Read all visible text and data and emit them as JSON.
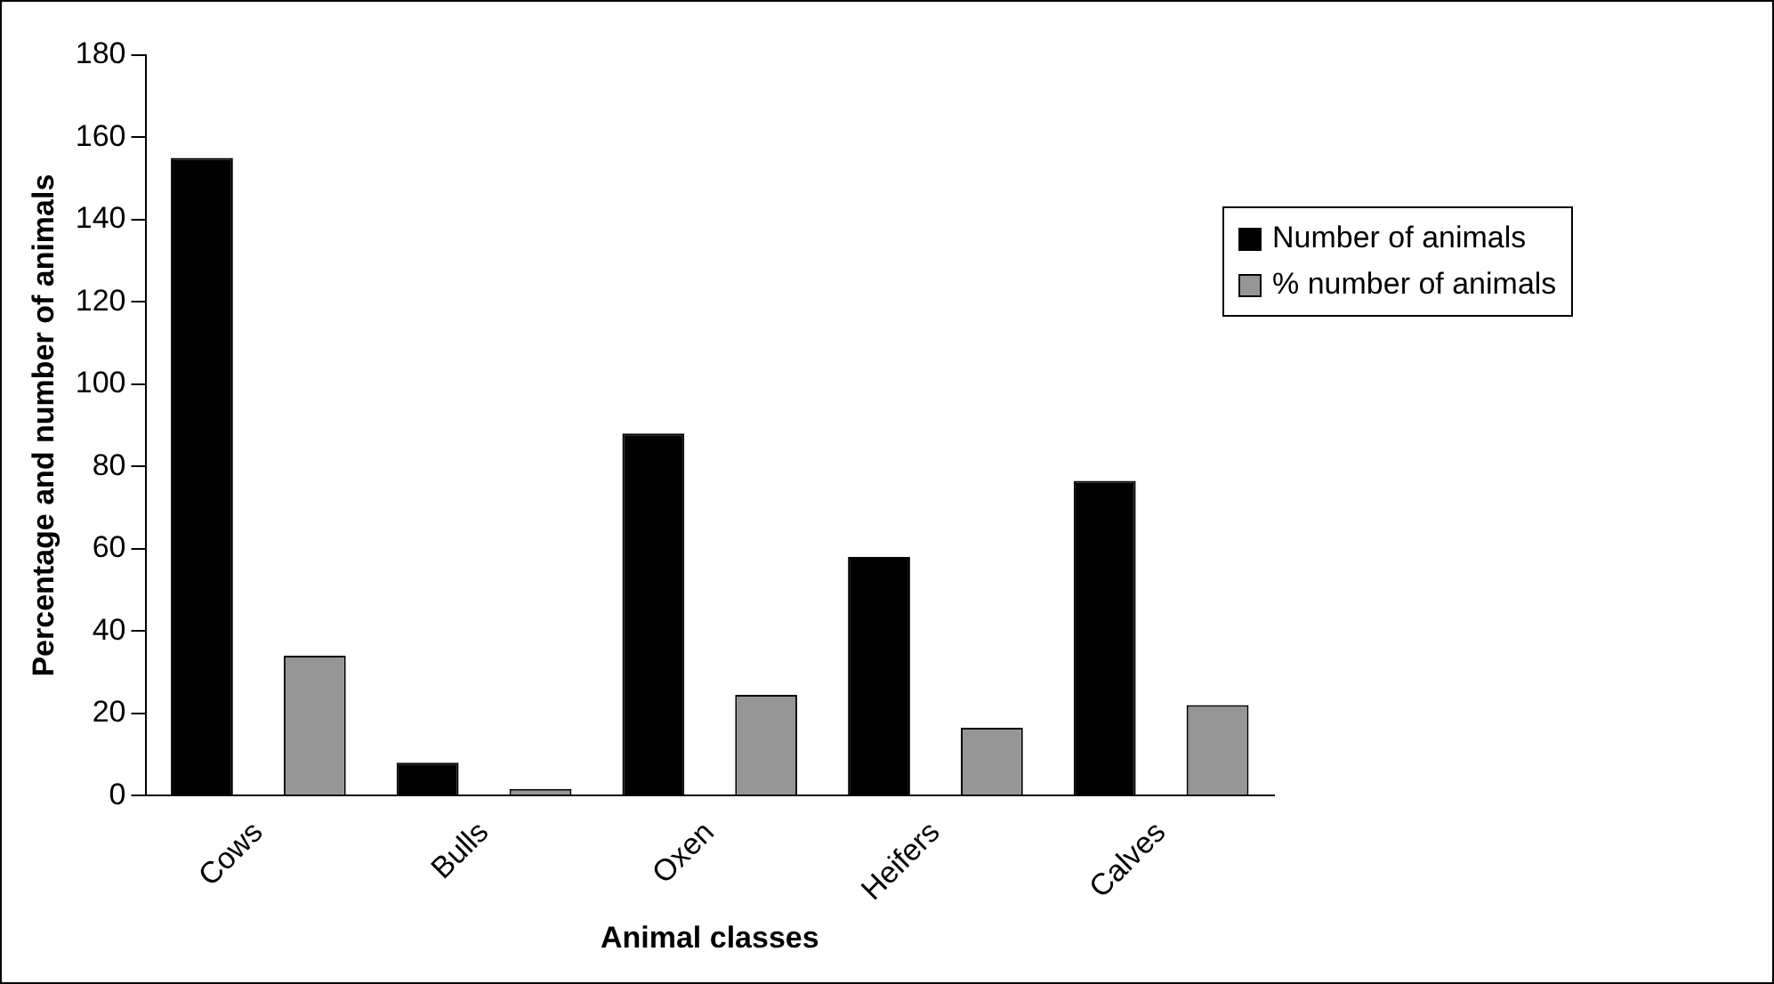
{
  "chart_data": {
    "type": "bar",
    "xlabel": "Animal classes",
    "ylabel": "Percentage and number of animals",
    "categories": [
      "Cows",
      "Bulls",
      "Oxen",
      "Heifers",
      "Calves"
    ],
    "series": [
      {
        "name": "Number of animals",
        "color": "#000000",
        "values": [
          155,
          8,
          88,
          58,
          76.5
        ]
      },
      {
        "name": "% number of animals",
        "color": "#969696",
        "values": [
          34,
          1.6,
          24.5,
          16.5,
          22
        ]
      }
    ],
    "ylim": [
      0,
      180
    ],
    "yticks": [
      0,
      20,
      40,
      60,
      80,
      100,
      120,
      140,
      160,
      180
    ],
    "grid": false,
    "legend": "right"
  }
}
